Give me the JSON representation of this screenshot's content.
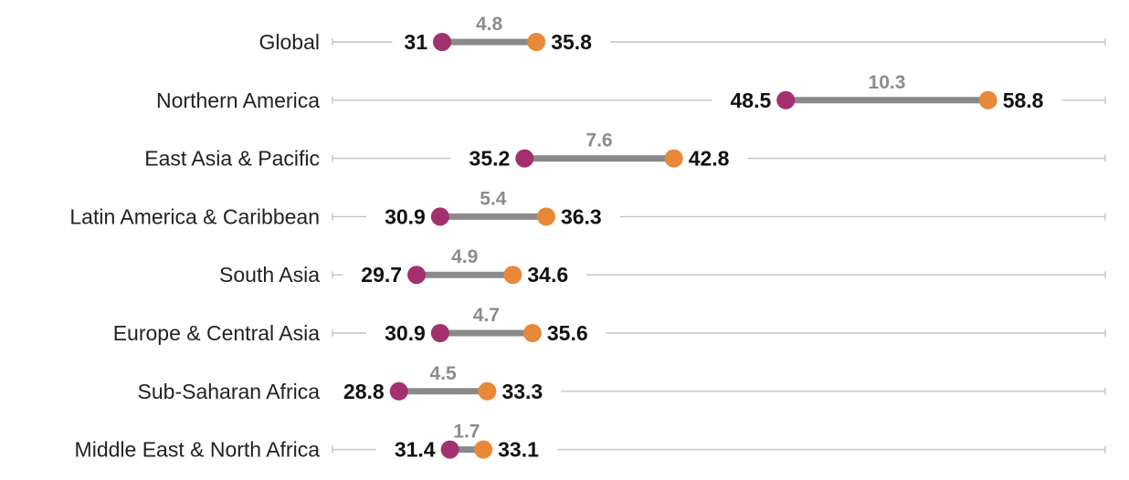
{
  "chart_data": {
    "type": "dumbbell",
    "title": "",
    "xlabel": "",
    "ylabel": "",
    "xlim": [
      20,
      70
    ],
    "grid": false,
    "legend": "none",
    "categories": [
      "Global",
      "Northern America",
      "East Asia & Pacific",
      "Latin America & Caribbean",
      "South Asia",
      "Europe & Central Asia",
      "Sub-Saharan Africa",
      "Middle East & North Africa"
    ],
    "series": [
      {
        "name": "start",
        "color": "#a3306f",
        "values": [
          31,
          48.5,
          35.2,
          30.9,
          29.7,
          30.9,
          28.8,
          31.4
        ]
      },
      {
        "name": "end",
        "color": "#e8893a",
        "values": [
          35.8,
          58.8,
          42.8,
          36.3,
          34.6,
          35.6,
          33.3,
          33.1
        ]
      }
    ],
    "labels": {
      "start": [
        "31",
        "48.5",
        "35.2",
        "30.9",
        "29.7",
        "30.9",
        "28.8",
        "31.4"
      ],
      "end": [
        "35.8",
        "58.8",
        "42.8",
        "36.3",
        "34.6",
        "35.6",
        "33.3",
        "33.1"
      ],
      "gap": [
        "4.8",
        "10.3",
        "7.6",
        "5.4",
        "4.9",
        "4.7",
        "4.5",
        "1.7"
      ]
    },
    "colors": {
      "axis_line": "#c4c4c4",
      "connector": "#8a8a8a",
      "gap_text": "#8c8c8c",
      "value_text": "#111111",
      "category_text": "#222222"
    }
  }
}
